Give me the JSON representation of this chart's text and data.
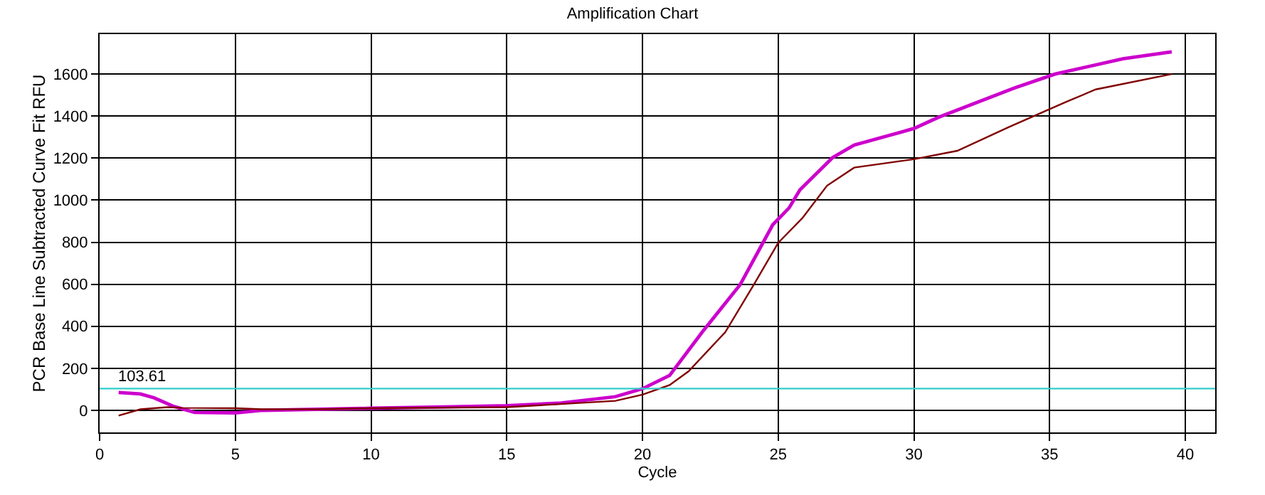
{
  "chart_data": {
    "type": "line",
    "title": "Amplification Chart",
    "xlabel": "Cycle",
    "ylabel": "PCR Base Line Subtracted Curve Fit RFU",
    "xlim": [
      0,
      41.1
    ],
    "xticks": [
      0,
      5,
      10,
      15,
      20,
      25,
      30,
      35,
      40
    ],
    "ylim": [
      -105,
      1790
    ],
    "yticks": [
      0,
      200,
      400,
      600,
      800,
      1000,
      1200,
      1400,
      1600
    ],
    "grid": true,
    "ref_lines": [
      {
        "axis": "y",
        "value": 103.61,
        "label": "103.61",
        "color": "#33cccc"
      }
    ],
    "series": [
      {
        "color": "#cc00cc",
        "x": [
          0.7,
          1.5,
          2,
          2.7,
          3.5,
          5,
          6,
          8,
          10,
          13,
          15,
          17,
          19,
          20,
          21,
          22.2,
          23.6,
          24.8,
          25.4,
          25.8,
          27,
          27.8,
          30,
          30.9,
          33.7,
          35.2,
          37.7,
          39.5
        ],
        "values": [
          85,
          78,
          60,
          20,
          -10,
          -12,
          0,
          5,
          10,
          17,
          22,
          35,
          65,
          103,
          166,
          372,
          598,
          883,
          963,
          1049,
          1202,
          1262,
          1341,
          1394,
          1534,
          1600,
          1673,
          1706
        ]
      },
      {
        "color": "#800000",
        "x": [
          0.7,
          1.5,
          2.5,
          3,
          5,
          6,
          8,
          10,
          15,
          19,
          20,
          21,
          21.7,
          23.05,
          24.1,
          25,
          25.9,
          26.8,
          27.8,
          30,
          31.6,
          33.5,
          35.6,
          36.7,
          39.5
        ],
        "values": [
          -25,
          5,
          15,
          12,
          10,
          5,
          5,
          10,
          15,
          45,
          75,
          120,
          186,
          372,
          598,
          797,
          916,
          1069,
          1155,
          1195,
          1235,
          1348,
          1467,
          1527,
          1600
        ]
      }
    ]
  }
}
